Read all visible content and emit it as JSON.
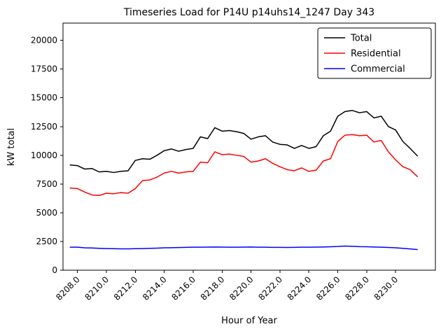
{
  "figure": {
    "background": "#ffffff"
  },
  "chart_data": {
    "type": "line",
    "title": "Timeseries Load for P14U p14uhs14_1247  Day 343",
    "xlabel": "Hour of Year",
    "ylabel": "kW total",
    "xlim": [
      8207.0,
      8232.75
    ],
    "ylim": [
      0,
      21500
    ],
    "grid": false,
    "x_ticks": [
      8208,
      8210,
      8212,
      8214,
      8216,
      8218,
      8220,
      8222,
      8224,
      8226,
      8228,
      8230
    ],
    "x_tick_labels": [
      "8208.0",
      "8210.0",
      "8212.0",
      "8214.0",
      "8216.0",
      "8218.0",
      "8220.0",
      "8222.0",
      "8224.0",
      "8226.0",
      "8228.0",
      "8230.0"
    ],
    "y_ticks": [
      0,
      2500,
      5000,
      7500,
      10000,
      12500,
      15000,
      17500,
      20000
    ],
    "y_tick_labels": [
      "0",
      "2500",
      "5000",
      "7500",
      "10000",
      "12500",
      "15000",
      "17500",
      "20000"
    ],
    "legend": {
      "position": "upper right",
      "entries": [
        {
          "label": "Total",
          "color": "#000000"
        },
        {
          "label": "Residential",
          "color": "#ff0000"
        },
        {
          "label": "Commercial",
          "color": "#0000ff"
        }
      ]
    },
    "x": [
      8207.5,
      8208.0,
      8208.5,
      8209.0,
      8209.5,
      8210.0,
      8210.5,
      8211.0,
      8211.5,
      8212.0,
      8212.5,
      8213.0,
      8213.5,
      8214.0,
      8214.5,
      8215.0,
      8215.5,
      8216.0,
      8216.5,
      8217.0,
      8217.5,
      8218.0,
      8218.5,
      8219.0,
      8219.5,
      8220.0,
      8220.5,
      8221.0,
      8221.5,
      8222.0,
      8222.5,
      8223.0,
      8223.5,
      8224.0,
      8224.5,
      8225.0,
      8225.5,
      8226.0,
      8226.5,
      8227.0,
      8227.5,
      8228.0,
      8228.5,
      8229.0,
      8229.5,
      8230.0,
      8230.5,
      8231.0,
      8231.5
    ],
    "series": [
      {
        "name": "Total",
        "color": "#000000",
        "values": [
          9150,
          9100,
          8800,
          8850,
          8550,
          8600,
          8500,
          8600,
          8650,
          9550,
          9700,
          9650,
          10000,
          10400,
          10550,
          10350,
          10500,
          10600,
          11600,
          11450,
          12400,
          12100,
          12150,
          12050,
          11900,
          11400,
          11600,
          11700,
          11150,
          10950,
          10900,
          10600,
          10850,
          10600,
          10750,
          11700,
          12100,
          13400,
          13800,
          13900,
          13700,
          13800,
          13250,
          13400,
          12500,
          12200,
          11200,
          10600,
          9950
        ]
      },
      {
        "name": "Residential",
        "color": "#ff0000",
        "values": [
          7150,
          7100,
          6800,
          6550,
          6500,
          6700,
          6650,
          6750,
          6700,
          7100,
          7800,
          7850,
          8100,
          8450,
          8600,
          8450,
          8550,
          8600,
          9400,
          9350,
          10300,
          10050,
          10100,
          10000,
          9900,
          9400,
          9500,
          9700,
          9300,
          9000,
          8750,
          8650,
          8900,
          8600,
          8700,
          9500,
          9700,
          11200,
          11750,
          11800,
          11700,
          11750,
          11150,
          11300,
          10300,
          9600,
          9000,
          8750,
          8150
        ]
      },
      {
        "name": "Commercial",
        "color": "#0000ff",
        "values": [
          2000,
          2000,
          1950,
          1930,
          1900,
          1880,
          1870,
          1860,
          1860,
          1870,
          1880,
          1900,
          1920,
          1950,
          1960,
          1970,
          1990,
          2000,
          2000,
          2010,
          2020,
          2010,
          2000,
          2000,
          2010,
          2020,
          2000,
          2000,
          1990,
          1990,
          1980,
          1990,
          2000,
          2000,
          2010,
          2020,
          2040,
          2060,
          2100,
          2080,
          2050,
          2040,
          2020,
          2000,
          1980,
          1950,
          1900,
          1850,
          1800
        ]
      }
    ]
  }
}
